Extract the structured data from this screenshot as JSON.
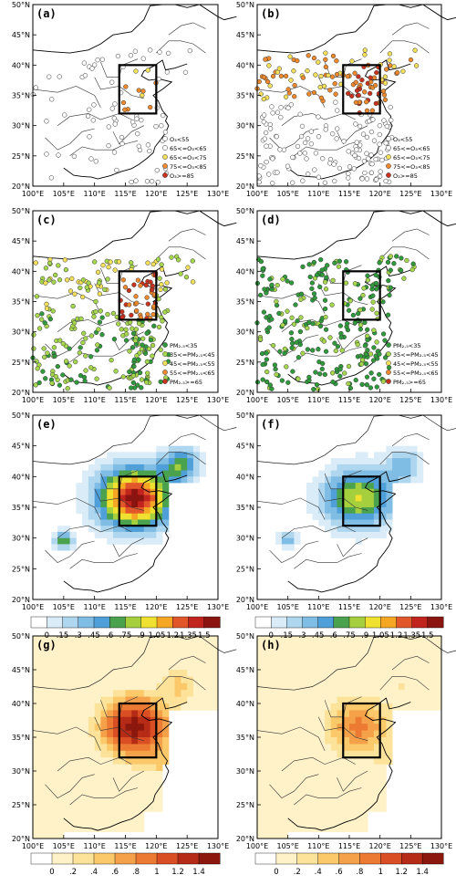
{
  "panels": [
    {
      "id": "a",
      "label": "(a)",
      "type": "station-o3",
      "tier": "low"
    },
    {
      "id": "b",
      "label": "(b)",
      "type": "station-o3",
      "tier": "high"
    },
    {
      "id": "c",
      "label": "(c)",
      "type": "station-pm",
      "tier": "high"
    },
    {
      "id": "d",
      "label": "(d)",
      "type": "station-pm",
      "tier": "low"
    },
    {
      "id": "e",
      "label": "(e)",
      "type": "field-blue",
      "tier": "high"
    },
    {
      "id": "f",
      "label": "(f)",
      "type": "field-blue",
      "tier": "low"
    },
    {
      "id": "g",
      "label": "(g)",
      "type": "field-orange",
      "tier": "high"
    },
    {
      "id": "h",
      "label": "(h)",
      "type": "field-orange",
      "tier": "low"
    }
  ],
  "axes": {
    "lon_ticks": [
      "100°E",
      "105°E",
      "110°E",
      "115°E",
      "120°E",
      "125°E",
      "130°E"
    ],
    "lat_ticks": [
      "20°N",
      "25°N",
      "30°N",
      "35°N",
      "40°N",
      "45°N",
      "50°N"
    ]
  },
  "legend_o3": [
    {
      "label": "O₃<55",
      "color": "#ffffff"
    },
    {
      "label": "65<=O₃<65",
      "color": "#ffffff"
    },
    {
      "label": "65<=O₃<75",
      "color": "#f3e05a"
    },
    {
      "label": "75<=O₃<85",
      "color": "#ee8a2d"
    },
    {
      "label": "O₃>=85",
      "color": "#c8321e"
    }
  ],
  "legend_pm": [
    {
      "label": "PM₂.₅<35",
      "color": "#2f9a3c"
    },
    {
      "label": "35<=PM₂.₅<45",
      "color": "#a6d74d"
    },
    {
      "label": "45<=PM₂.₅<55",
      "color": "#f3e05a"
    },
    {
      "label": "55<=PM₂.₅<65",
      "color": "#ee8a2d"
    },
    {
      "label": "PM₂.₅>=65",
      "color": "#c8321e"
    }
  ],
  "colorbar_blue": {
    "labels": [
      "0",
      ".15",
      ".3",
      ".45",
      ".6",
      ".75",
      ".9",
      "1.05",
      "1.2",
      "1.35",
      "1.5"
    ],
    "colors": [
      "#ffffff",
      "#d9ecf7",
      "#aed6ef",
      "#7fbde5",
      "#4f9fd8",
      "#4aa24e",
      "#a6cf3e",
      "#f0e130",
      "#f5a623",
      "#e2572a",
      "#c0241d",
      "#8a1410"
    ]
  },
  "colorbar_orange_g": {
    "labels": [
      "0",
      ".2",
      ".4",
      ".6",
      ".8",
      "1",
      "1.2",
      "1.4"
    ],
    "colors": [
      "#ffffff",
      "#fff2c9",
      "#fde39a",
      "#fbc86a",
      "#f5a14a",
      "#ec7a32",
      "#d94e23",
      "#b52b16",
      "#8c170c"
    ]
  },
  "colorbar_orange_h": {
    "labels": [
      "0",
      ".2",
      ".4",
      ".6",
      ".8",
      "1",
      "1.2",
      "1.4"
    ],
    "colors": [
      "#ffffff",
      "#fff2c9",
      "#fde39a",
      "#fbc86a",
      "#f5a14a",
      "#ec7a32",
      "#d94e23",
      "#b52b16",
      "#8c170c"
    ]
  }
}
